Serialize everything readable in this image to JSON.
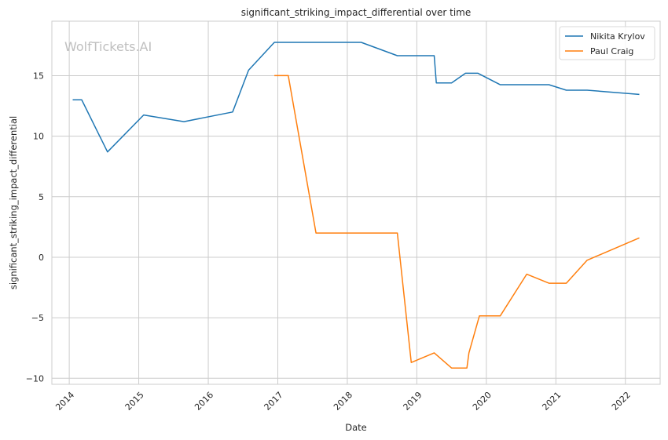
{
  "chart_data": {
    "type": "line",
    "title": "significant_striking_impact_differential over time",
    "xlabel": "Date",
    "ylabel": "significant_striking_impact_differential",
    "watermark": "WolfTickets.AI",
    "xlim": [
      2013.75,
      2022.5
    ],
    "ylim": [
      -10.5,
      19.5
    ],
    "x_ticks": [
      2014,
      2015,
      2016,
      2017,
      2018,
      2019,
      2020,
      2021,
      2022
    ],
    "x_tick_labels": [
      "2014",
      "2015",
      "2016",
      "2017",
      "2018",
      "2019",
      "2020",
      "2021",
      "2022"
    ],
    "y_ticks": [
      -10,
      -5,
      0,
      5,
      10,
      15
    ],
    "y_tick_labels": [
      "−10",
      "−5",
      "0",
      "5",
      "10",
      "15"
    ],
    "grid": true,
    "legend_position": "top-right",
    "series": [
      {
        "name": "Nikita Krylov",
        "color": "#1f77b4",
        "points": [
          [
            2014.05,
            13.0
          ],
          [
            2014.18,
            13.0
          ],
          [
            2014.55,
            8.7
          ],
          [
            2015.07,
            11.75
          ],
          [
            2015.65,
            11.2
          ],
          [
            2016.35,
            12.0
          ],
          [
            2016.58,
            15.45
          ],
          [
            2016.95,
            17.75
          ],
          [
            2018.2,
            17.75
          ],
          [
            2018.72,
            16.65
          ],
          [
            2019.25,
            16.65
          ],
          [
            2019.28,
            14.4
          ],
          [
            2019.5,
            14.4
          ],
          [
            2019.7,
            15.2
          ],
          [
            2019.88,
            15.2
          ],
          [
            2020.2,
            14.25
          ],
          [
            2020.9,
            14.25
          ],
          [
            2021.15,
            13.8
          ],
          [
            2021.45,
            13.8
          ],
          [
            2022.2,
            13.45
          ]
        ]
      },
      {
        "name": "Paul Craig",
        "color": "#ff7f0e",
        "points": [
          [
            2016.95,
            15.0
          ],
          [
            2017.15,
            15.0
          ],
          [
            2017.55,
            2.0
          ],
          [
            2018.72,
            2.0
          ],
          [
            2018.92,
            -8.7
          ],
          [
            2019.25,
            -7.9
          ],
          [
            2019.5,
            -9.15
          ],
          [
            2019.72,
            -9.15
          ],
          [
            2019.75,
            -7.9
          ],
          [
            2019.9,
            -4.85
          ],
          [
            2020.2,
            -4.85
          ],
          [
            2020.58,
            -1.4
          ],
          [
            2020.9,
            -2.15
          ],
          [
            2021.15,
            -2.15
          ],
          [
            2021.45,
            -0.25
          ],
          [
            2022.2,
            1.6
          ]
        ]
      }
    ]
  }
}
